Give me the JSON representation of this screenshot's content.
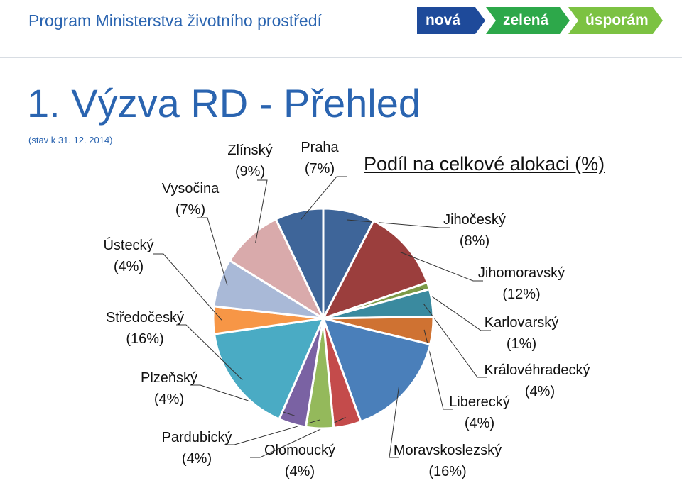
{
  "header": {
    "brand": "Program Ministerstva životního prostředí",
    "chevrons": [
      {
        "label": "nová",
        "color": "#1e4a9a"
      },
      {
        "label": "zelená",
        "color": "#2da84a"
      },
      {
        "label": "úsporám",
        "color": "#7cc242"
      }
    ]
  },
  "slide": {
    "title": "1. Výzva RD - Přehled",
    "date": "(stav k 31. 12. 2014)"
  },
  "chart_data": {
    "type": "pie",
    "title": "Podíl na celkové alokaci (%)",
    "legend": "none",
    "slices": [
      {
        "name": "Jihočeský",
        "pct_label": "(8%)",
        "value": 7.5,
        "color": "#3e6599"
      },
      {
        "name": "Jihomoravský",
        "pct_label": "(12%)",
        "value": 12,
        "color": "#9b3e3d"
      },
      {
        "name": "Karlovarský",
        "pct_label": "(1%)",
        "value": 1,
        "color": "#7c9a47"
      },
      {
        "name": "Královéhradecký",
        "pct_label": "(4%)",
        "value": 4,
        "color": "#3a8a9f"
      },
      {
        "name": "Liberecký",
        "pct_label": "(4%)",
        "value": 4,
        "color": "#cf7232"
      },
      {
        "name": "Moravskoslezský",
        "pct_label": "(16%)",
        "value": 15.5,
        "color": "#4a7fba"
      },
      {
        "name": "Olomoucký",
        "pct_label": "(4%)",
        "value": 4,
        "color": "#c44b4b"
      },
      {
        "name": "Pardubický",
        "pct_label": "(4%)",
        "value": 4,
        "color": "#94b95b"
      },
      {
        "name": "Plzeňský",
        "pct_label": "(4%)",
        "value": 4,
        "color": "#7a62a3"
      },
      {
        "name": "Středočeský",
        "pct_label": "(16%)",
        "value": 16,
        "color": "#4aabc4"
      },
      {
        "name": "Ústecký",
        "pct_label": "(4%)",
        "value": 4,
        "color": "#f79646"
      },
      {
        "name": "Vysočina",
        "pct_label": "(7%)",
        "value": 7,
        "color": "#a9b9d7"
      },
      {
        "name": "Zlínský",
        "pct_label": "(9%)",
        "value": 9,
        "color": "#d9aaab"
      },
      {
        "name": "Praha",
        "pct_label": "(7%)",
        "value": 7,
        "color": "#3e6599"
      }
    ]
  }
}
